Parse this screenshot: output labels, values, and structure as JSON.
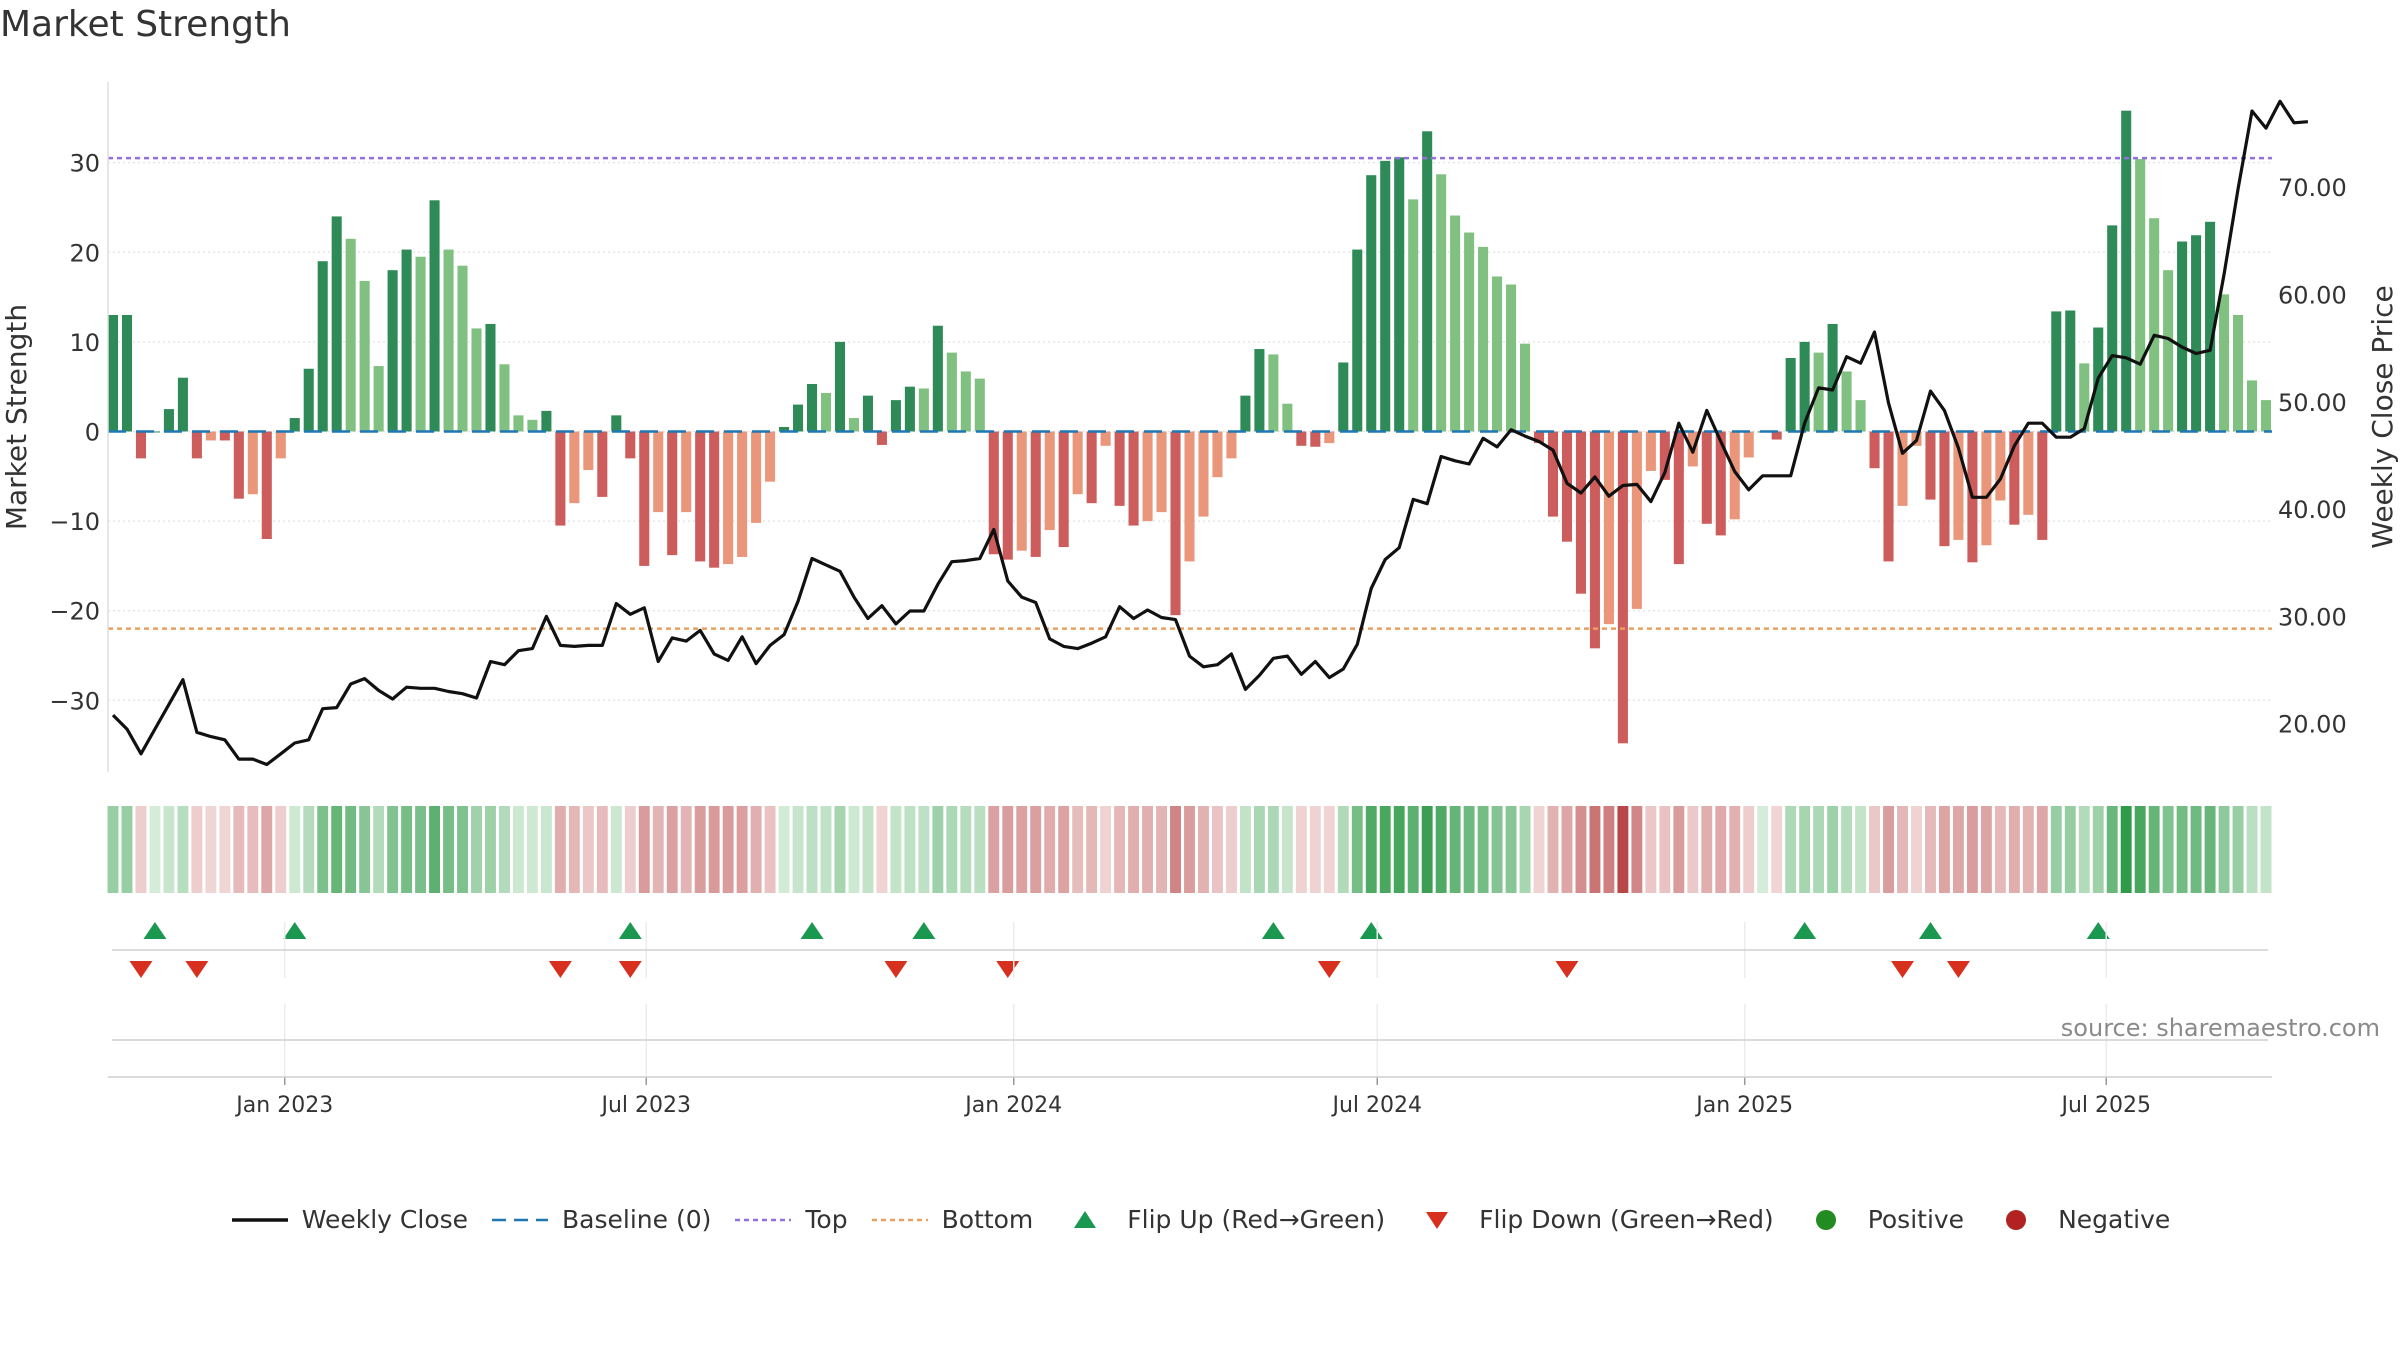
{
  "title": "Market Strength",
  "source": "source: sharemaestro.com",
  "chart_data": {
    "type": "bar",
    "title": "Market Strength",
    "left_axis": {
      "label": "Market Strength",
      "ylim": [
        -38,
        39
      ],
      "ticks": [
        30,
        20,
        10,
        0,
        -10,
        -20,
        -30
      ],
      "tick_labels": [
        "30",
        "20",
        "10",
        "0",
        "−10",
        "−20",
        "−30"
      ]
    },
    "right_axis": {
      "label": "Weekly Close Price",
      "ylim": [
        15.5,
        79.8
      ],
      "ticks": [
        70,
        60,
        50,
        40,
        30,
        20
      ],
      "tick_labels": [
        "70.00",
        "60.00",
        "50.00",
        "40.00",
        "30.00",
        "20.00"
      ]
    },
    "top_level": 30.5,
    "bottom_level": -22,
    "x_start": "2022-10-07",
    "week_step_days": 7,
    "x_ticks": [
      {
        "date": "2023-01-01",
        "label": "Jan 2023"
      },
      {
        "date": "2023-07-01",
        "label": "Jul 2023"
      },
      {
        "date": "2024-01-01",
        "label": "Jan 2024"
      },
      {
        "date": "2024-07-01",
        "label": "Jul 2024"
      },
      {
        "date": "2025-01-01",
        "label": "Jan 2025"
      },
      {
        "date": "2025-07-01",
        "label": "Jul 2025"
      }
    ],
    "strength": [
      13,
      13,
      -3,
      0,
      2.5,
      6,
      -3,
      -1,
      -1,
      -7.5,
      -7,
      -12,
      -3,
      1.5,
      7,
      19,
      24,
      21.5,
      16.8,
      7.3,
      18,
      20.3,
      19.5,
      25.8,
      20.3,
      18.5,
      11.5,
      12,
      7.5,
      1.8,
      1.3,
      2.3,
      -10.5,
      -8,
      -4.3,
      -7.3,
      1.8,
      -3,
      -15,
      -9,
      -13.8,
      -9,
      -14.5,
      -15.2,
      -14.8,
      -14,
      -10.2,
      -5.6,
      0.5,
      3,
      5.3,
      4.3,
      10,
      1.5,
      4,
      -1.5,
      3.5,
      5,
      4.8,
      11.8,
      8.8,
      6.7,
      5.9,
      -13.7,
      -14.3,
      -13.3,
      -14,
      -11,
      -12.9,
      -7,
      -8,
      -1.6,
      -8.3,
      -10.5,
      -10,
      -9,
      -20.5,
      -14.5,
      -9.5,
      -5.1,
      -3,
      4,
      9.2,
      8.6,
      3.1,
      -1.6,
      -1.7,
      -1.3,
      7.7,
      20.3,
      28.6,
      30.2,
      30.6,
      25.9,
      33.5,
      28.7,
      24.1,
      22.2,
      20.6,
      17.3,
      16.4,
      9.8,
      -1.3,
      -9.5,
      -12.3,
      -18.1,
      -24.2,
      -21.5,
      -34.8,
      -19.8,
      -4.4,
      -5.4,
      -14.8,
      -3.9,
      -10.3,
      -11.6,
      -9.8,
      -2.9,
      0,
      -0.9,
      8.2,
      10,
      8.8,
      12,
      6.7,
      3.5,
      -4.1,
      -14.5,
      -8.3,
      -1.6,
      -7.6,
      -12.8,
      -12.1,
      -14.6,
      -12.7,
      -7.7,
      -10.4,
      -9.3,
      -12.1,
      13.4,
      13.5,
      7.6,
      11.6,
      23,
      35.8,
      30.4,
      23.8,
      18,
      21.2,
      21.9,
      23.4,
      15.3,
      13,
      5.7,
      3.5
    ],
    "weekly_close": [
      20.8,
      19.5,
      17.2,
      19.5,
      21.8,
      24.1,
      19.2,
      18.8,
      18.5,
      16.7,
      16.7,
      16.2,
      17.2,
      18.2,
      18.5,
      21.4,
      21.5,
      23.7,
      24.2,
      23.1,
      22.3,
      23.4,
      23.3,
      23.3,
      23,
      22.8,
      22.4,
      25.8,
      25.5,
      26.8,
      27,
      30,
      27.3,
      27.2,
      27.3,
      27.3,
      31.2,
      30.2,
      30.8,
      25.8,
      28,
      27.7,
      28.7,
      26.5,
      25.9,
      28.1,
      25.6,
      27.3,
      28.3,
      31.4,
      35.4,
      34.8,
      34.2,
      31.8,
      29.8,
      31,
      29.3,
      30.5,
      30.5,
      33,
      35.1,
      35.2,
      35.4,
      38.1,
      33.3,
      31.8,
      31.3,
      27.9,
      27.2,
      27,
      27.5,
      28.1,
      30.9,
      29.8,
      30.6,
      29.9,
      29.7,
      26.3,
      25.3,
      25.5,
      26.5,
      23.2,
      24.5,
      26.1,
      26.3,
      24.6,
      25.8,
      24.3,
      25.1,
      27.4,
      32.6,
      35.3,
      36.4,
      40.9,
      40.5,
      44.9,
      44.5,
      44.2,
      46.6,
      45.8,
      47.4,
      46.8,
      46.3,
      45.5,
      42.4,
      41.5,
      43,
      41.2,
      42.2,
      42.3,
      40.7,
      43.4,
      48,
      45.3,
      49.2,
      46.3,
      43.5,
      41.8,
      43.1,
      43.1,
      43.1,
      48,
      51.3,
      51.1,
      54.2,
      53.6,
      56.5,
      49.9,
      45.2,
      46.4,
      51,
      49.2,
      45.7,
      41.1,
      41.1,
      42.8,
      45.9,
      48,
      48,
      46.7,
      46.7,
      47.5,
      52.2,
      54.3,
      54.1,
      53.5,
      56.2,
      55.9,
      55.1,
      54.5,
      54.8,
      61.9,
      69.8,
      77.1,
      75.5,
      78,
      76,
      76.1
    ],
    "flip_up_indices": [
      3,
      13,
      37,
      50,
      58,
      83,
      90,
      121,
      130,
      142
    ],
    "flip_down_indices": [
      2,
      6,
      32,
      37,
      56,
      64,
      87,
      104,
      128,
      132
    ],
    "heat_strip": "weekly colour band: green shades = positive strength, red shades = negative strength",
    "colors": {
      "pos_strong": "#2e8b57",
      "pos_light": "#80c080",
      "neg_strong": "#cd5c5c",
      "neg_light": "#e9967a",
      "weekly_close": "#111111",
      "baseline": "#1f77b4",
      "top": "#9370db",
      "bottom": "#e8a060",
      "flip_up": "#1a9850",
      "flip_down": "#d7301f",
      "positive": "#228b22",
      "negative": "#b22222"
    },
    "legend": [
      {
        "key": "weekly_close",
        "label": "Weekly Close"
      },
      {
        "key": "baseline",
        "label": "Baseline (0)"
      },
      {
        "key": "top",
        "label": "Top"
      },
      {
        "key": "bottom",
        "label": "Bottom"
      },
      {
        "key": "flip_up",
        "label": "Flip Up (Red→Green)"
      },
      {
        "key": "flip_down",
        "label": "Flip Down (Green→Red)"
      },
      {
        "key": "positive",
        "label": "Positive"
      },
      {
        "key": "negative",
        "label": "Negative"
      }
    ]
  }
}
